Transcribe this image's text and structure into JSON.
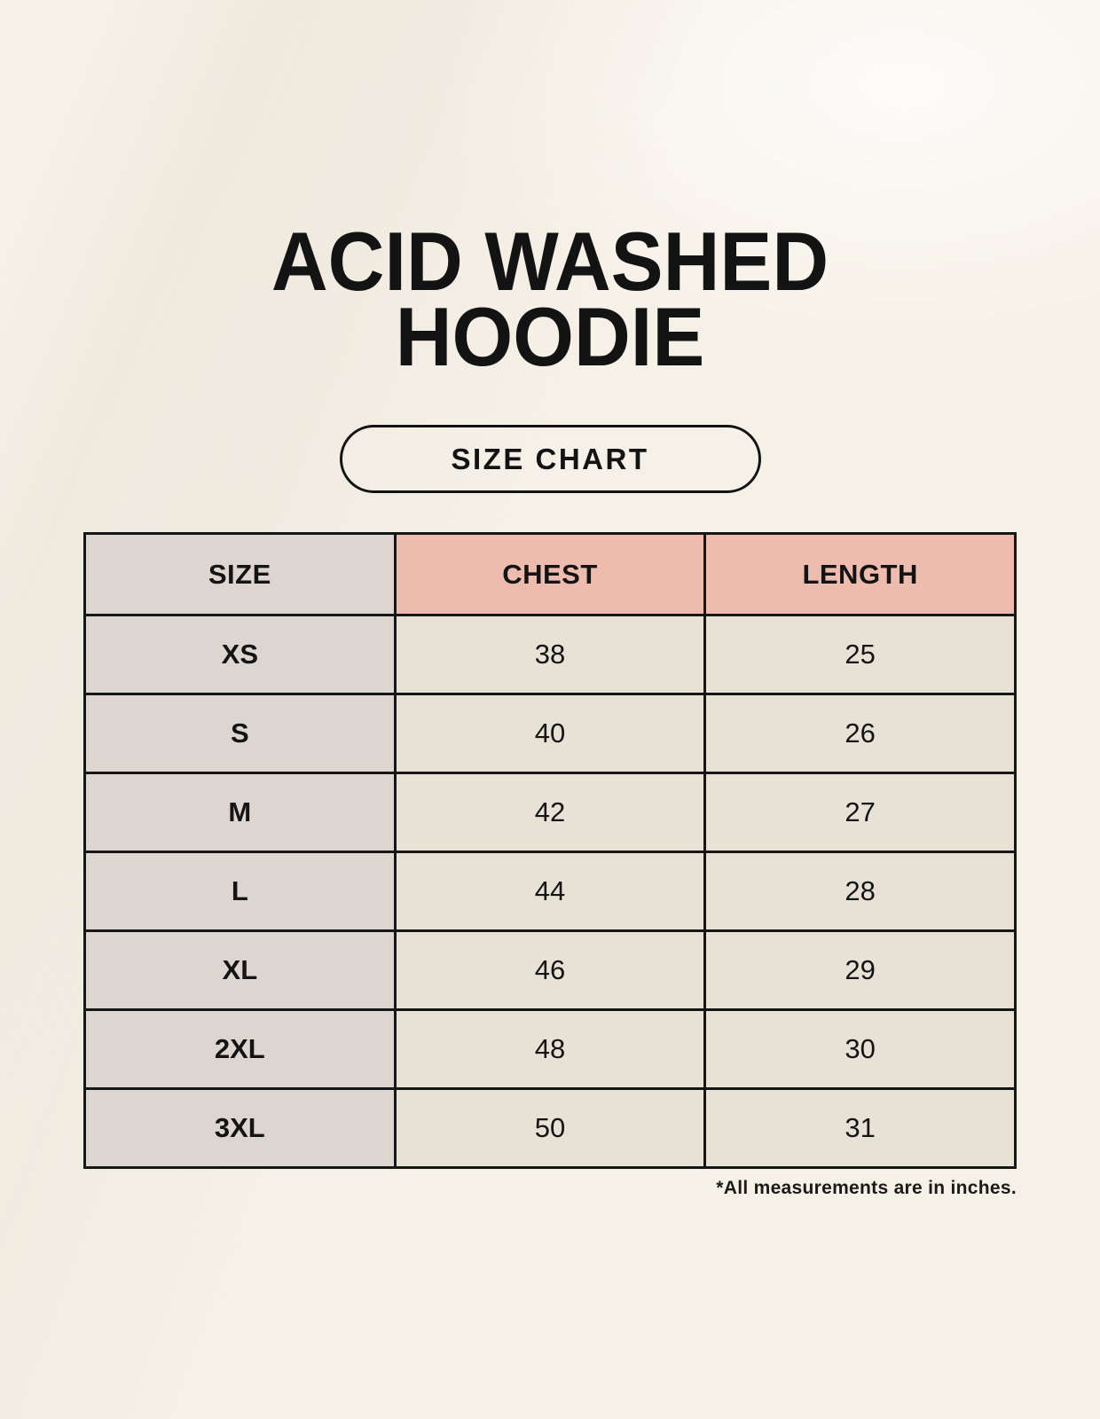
{
  "title": {
    "line1": "ACID WASHED",
    "line2": "HOODIE"
  },
  "size_chart_button": {
    "label": "SIZE CHART"
  },
  "table": {
    "columns": [
      "SIZE",
      "CHEST",
      "LENGTH"
    ],
    "rows": [
      {
        "size": "XS",
        "chest": "38",
        "length": "25"
      },
      {
        "size": "S",
        "chest": "40",
        "length": "26"
      },
      {
        "size": "M",
        "chest": "42",
        "length": "27"
      },
      {
        "size": "L",
        "chest": "44",
        "length": "28"
      },
      {
        "size": "XL",
        "chest": "46",
        "length": "29"
      },
      {
        "size": "2XL",
        "chest": "48",
        "length": "30"
      },
      {
        "size": "3XL",
        "chest": "50",
        "length": "31"
      }
    ]
  },
  "footnote": "*All measurements are in inches.",
  "colors": {
    "background": "#f6f1e7",
    "header_pink": "#eebcae",
    "header_gray": "#ddd5d0",
    "cell_cream": "#e8e1d6",
    "border_black": "#161616",
    "text_black": "#131313"
  },
  "chart_data": {
    "type": "table",
    "title": "ACID WASHED HOODIE",
    "subtitle": "SIZE CHART",
    "columns": [
      "SIZE",
      "CHEST",
      "LENGTH"
    ],
    "rows": [
      [
        "XS",
        38,
        25
      ],
      [
        "S",
        40,
        26
      ],
      [
        "M",
        42,
        27
      ],
      [
        "L",
        44,
        28
      ],
      [
        "XL",
        46,
        29
      ],
      [
        "2XL",
        48,
        30
      ],
      [
        "3XL",
        50,
        31
      ]
    ],
    "units": "inches",
    "note": "*All measurements are in inches."
  }
}
